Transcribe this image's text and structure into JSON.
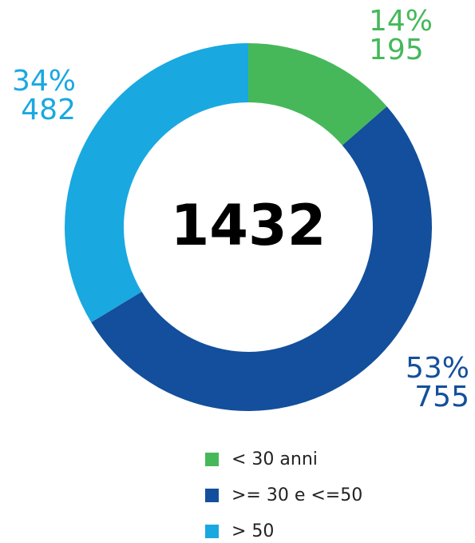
{
  "chart_data": {
    "type": "pie",
    "total": 1432,
    "categories": [
      "< 30 anni",
      ">= 30 e <=50",
      "> 50"
    ],
    "values": [
      195,
      755,
      482
    ],
    "percent_labels": [
      "14%",
      "53%",
      "34%"
    ],
    "colors": [
      "#46b85a",
      "#134f9c",
      "#1aa8e0"
    ]
  }
}
